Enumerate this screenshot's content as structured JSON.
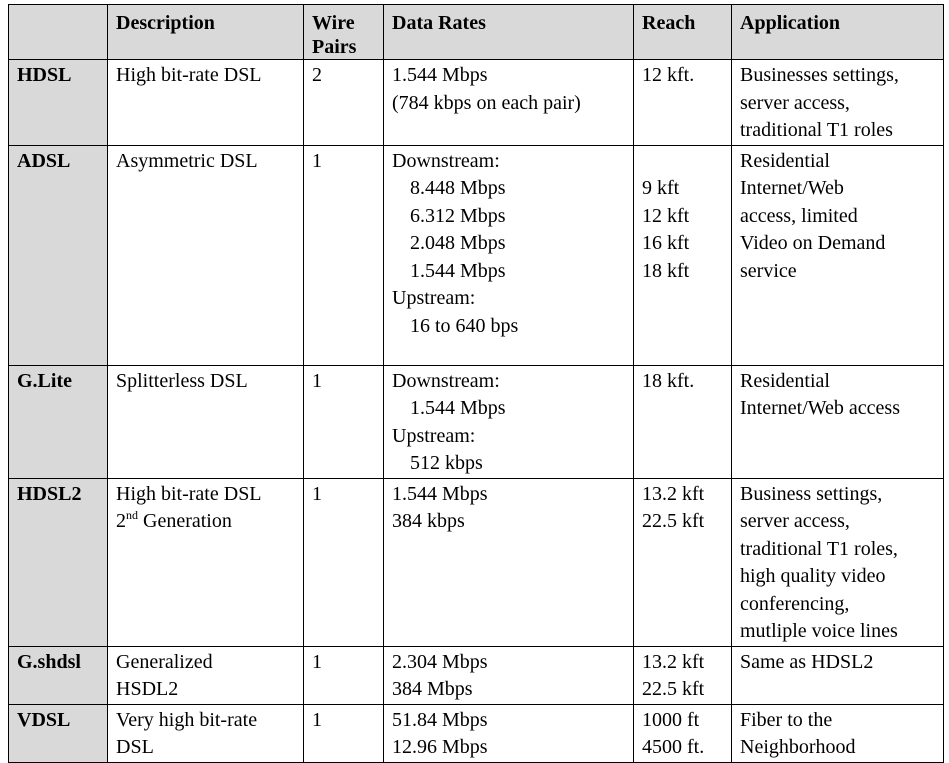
{
  "table": {
    "headers": [
      "",
      "Description",
      "Wire Pairs",
      "Data Rates",
      "Reach",
      "Application"
    ],
    "rows": [
      {
        "name": "HDSL",
        "description": [
          "High bit-rate DSL"
        ],
        "wire_pairs": "2",
        "data_rates": [
          {
            "text": "1.544 Mbps",
            "indent": false
          },
          {
            "text": "(784 kbps on each pair)",
            "indent": false
          }
        ],
        "reach": [
          "12 kft."
        ],
        "reach_offset": false,
        "application": [
          "Businesses settings,",
          "server access,",
          "traditional T1 roles"
        ]
      },
      {
        "name": "ADSL",
        "description": [
          "Asymmetric DSL"
        ],
        "wire_pairs": "1",
        "data_rates": [
          {
            "text": "Downstream:",
            "indent": false
          },
          {
            "text": "8.448 Mbps",
            "indent": true
          },
          {
            "text": "6.312 Mbps",
            "indent": true
          },
          {
            "text": "2.048 Mbps",
            "indent": true
          },
          {
            "text": "1.544 Mbps",
            "indent": true
          },
          {
            "text": "Upstream:",
            "indent": false
          },
          {
            "text": "16 to 640 bps",
            "indent": true
          }
        ],
        "reach": [
          "9 kft",
          "12 kft",
          "16 kft",
          "18 kft"
        ],
        "reach_offset": true,
        "application": [
          "Residential",
          "Internet/Web",
          "access, limited",
          "Video on Demand",
          "service"
        ]
      },
      {
        "name": "G.Lite",
        "description": [
          "Splitterless DSL"
        ],
        "wire_pairs": "1",
        "data_rates": [
          {
            "text": "Downstream:",
            "indent": false
          },
          {
            "text": "1.544 Mbps",
            "indent": true
          },
          {
            "text": "Upstream:",
            "indent": false
          },
          {
            "text": "512 kbps",
            "indent": true
          }
        ],
        "reach": [
          "18 kft."
        ],
        "reach_offset": false,
        "application": [
          "Residential",
          "Internet/Web access"
        ]
      },
      {
        "name": "HDSL2",
        "description": [
          "High bit-rate DSL"
        ],
        "description_sup": {
          "base": "2",
          "sup": "nd",
          "rest": " Generation"
        },
        "wire_pairs": "1",
        "data_rates": [
          {
            "text": "1.544 Mbps",
            "indent": false
          },
          {
            "text": "384 kbps",
            "indent": false
          }
        ],
        "reach": [
          "13.2 kft",
          "22.5 kft"
        ],
        "reach_offset": false,
        "application": [
          "Business settings,",
          "server access,",
          "traditional T1 roles,",
          "high quality video",
          "conferencing,",
          "mutliple voice lines"
        ]
      },
      {
        "name": "G.shdsl",
        "description": [
          "Generalized",
          "HSDL2"
        ],
        "wire_pairs": "1",
        "data_rates": [
          {
            "text": "2.304 Mbps",
            "indent": false
          },
          {
            "text": "384 Mbps",
            "indent": false
          }
        ],
        "reach": [
          "13.2 kft",
          "22.5 kft"
        ],
        "reach_offset": false,
        "application": [
          "Same as HDSL2"
        ]
      },
      {
        "name": "VDSL",
        "description": [
          "Very high bit-rate",
          "DSL"
        ],
        "wire_pairs": "1",
        "data_rates": [
          {
            "text": "51.84 Mbps",
            "indent": false
          },
          {
            "text": "12.96 Mbps",
            "indent": false
          }
        ],
        "reach": [
          "1000 ft",
          "4500 ft."
        ],
        "reach_offset": false,
        "application": [
          "Fiber to the",
          "Neighborhood"
        ]
      }
    ]
  }
}
